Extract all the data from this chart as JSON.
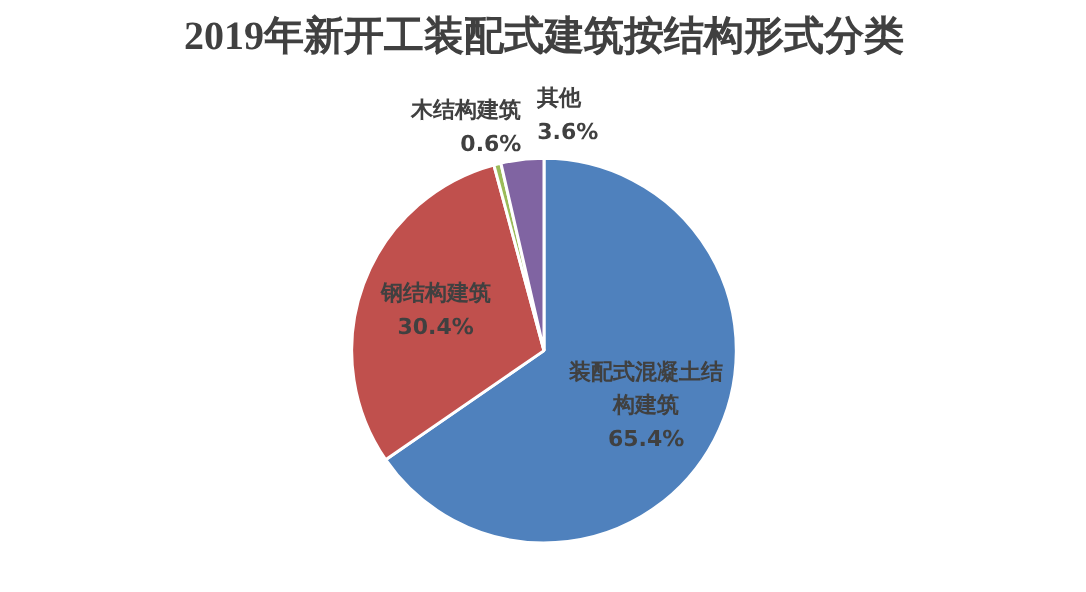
{
  "chart_data": {
    "type": "pie",
    "title": "2019年新开工装配式建筑按结构形式分类",
    "categories": [
      "装配式混凝土结构建筑",
      "钢结构建筑",
      "木结构建筑",
      "其他"
    ],
    "values": [
      65.4,
      30.4,
      0.6,
      3.6
    ],
    "colors": [
      "#4f81bd",
      "#c0504d",
      "#9bbb59",
      "#8064a2"
    ],
    "value_labels": [
      "65.4%",
      "30.4%",
      "0.6%",
      "3.6%"
    ]
  }
}
